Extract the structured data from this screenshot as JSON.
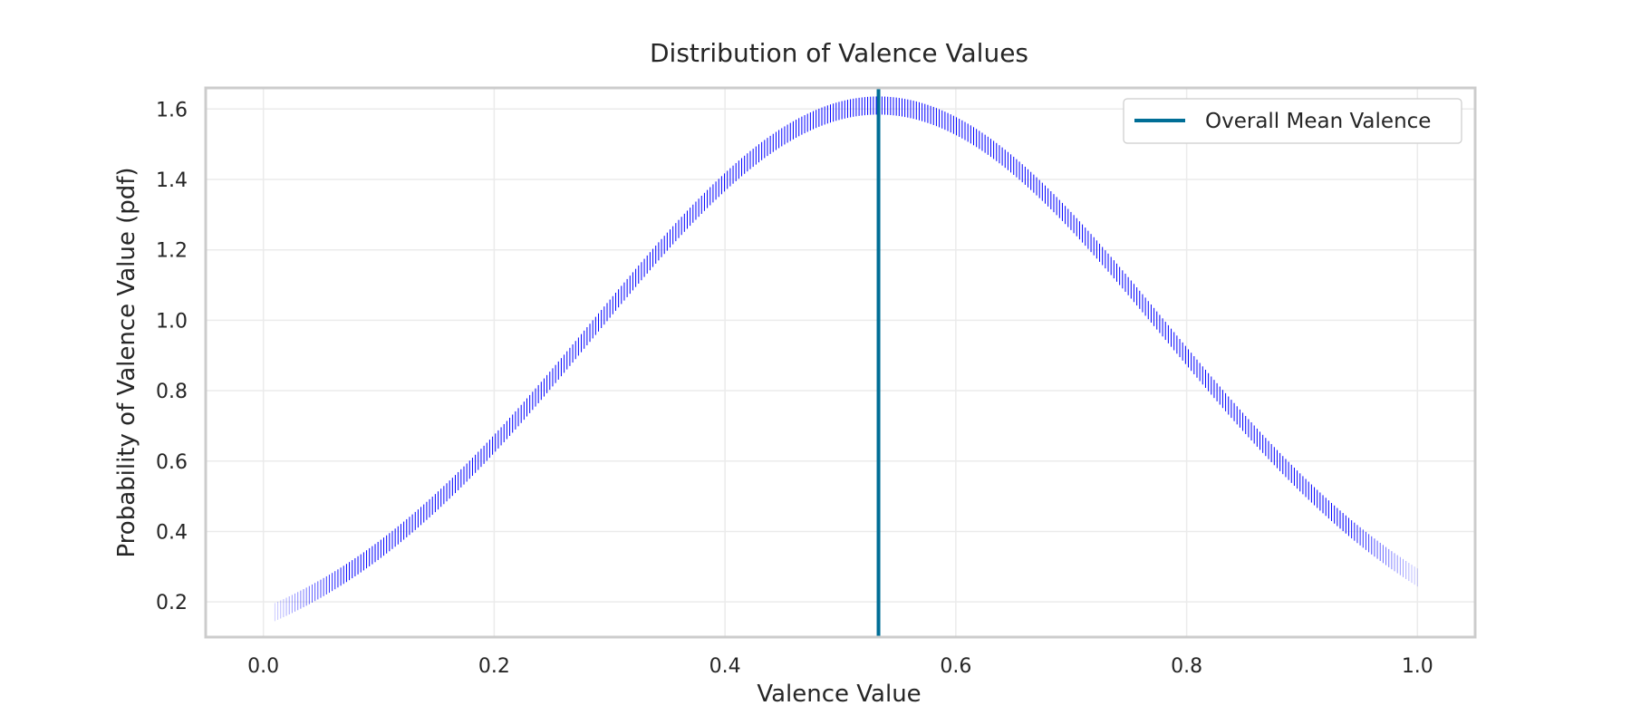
{
  "chart_data": {
    "type": "scatter",
    "title": "Distribution of Valence Values",
    "xlabel": "Valence Value",
    "ylabel": "Probability of Valence Value (pdf)",
    "xlim": [
      -0.05,
      1.05
    ],
    "ylim": [
      0.1,
      1.66
    ],
    "xticks": [
      "0.0",
      "0.2",
      "0.4",
      "0.6",
      "0.8",
      "1.0"
    ],
    "yticks": [
      "0.2",
      "0.4",
      "0.6",
      "0.8",
      "1.0",
      "1.2",
      "1.4",
      "1.6"
    ],
    "grid": true,
    "legend_position": "top-right",
    "marker": "vertical-line",
    "series": [
      {
        "kind": "density",
        "color": "#0000ff",
        "x_range": [
          0.01,
          1.0
        ],
        "mean": 0.533,
        "std": 0.247,
        "peak": 1.61
      },
      {
        "name": "Overall Mean Valence",
        "kind": "vline",
        "x": 0.533,
        "color": "#006e96"
      }
    ],
    "colors": {
      "axes_edge": "#cccccc",
      "grid": "#ebebeb",
      "text": "#262626"
    }
  }
}
